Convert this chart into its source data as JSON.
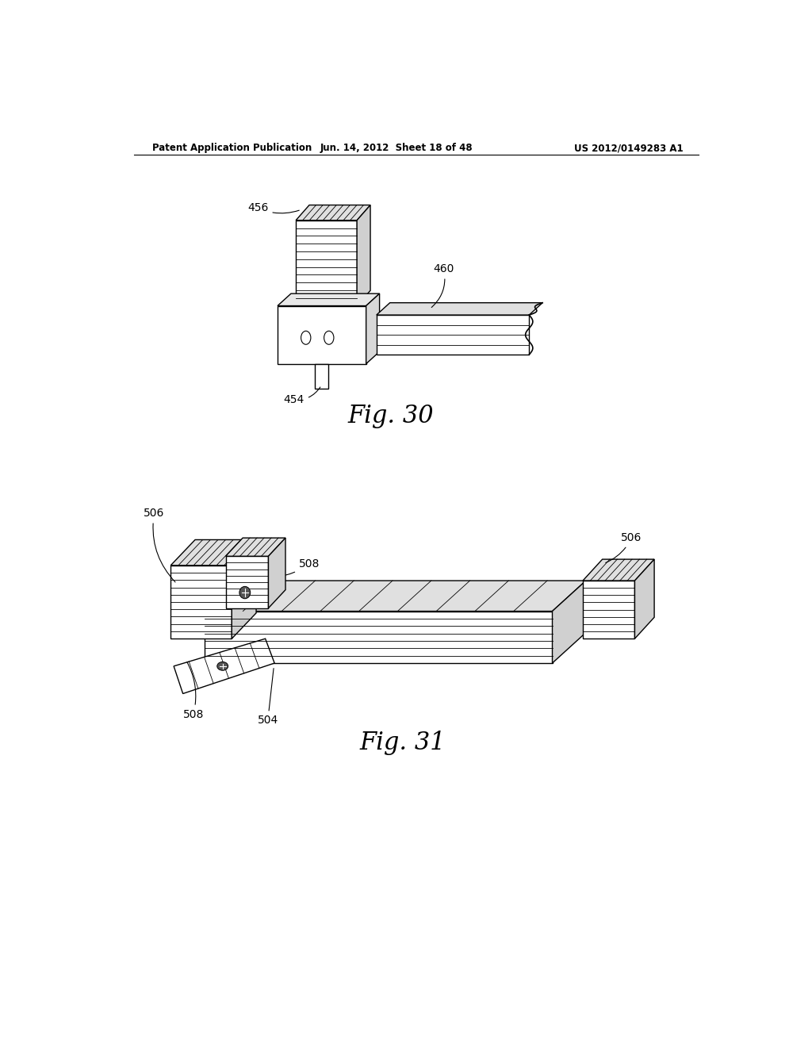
{
  "background_color": "#ffffff",
  "header_left": "Patent Application Publication",
  "header_mid": "Jun. 14, 2012  Sheet 18 of 48",
  "header_right": "US 2012/0149283 A1",
  "fig30_caption": "Fig. 30",
  "fig31_caption": "Fig. 31"
}
